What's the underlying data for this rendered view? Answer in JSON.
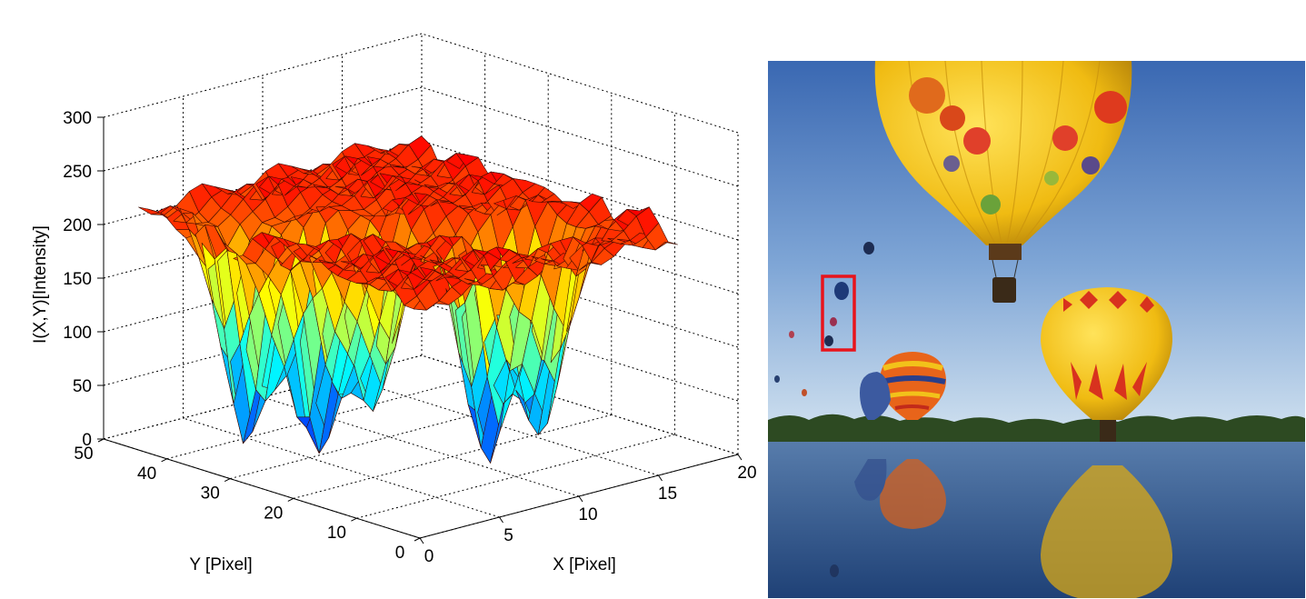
{
  "chart_data": {
    "type": "surface3d",
    "title": "",
    "xlabel": "X [Pixel]",
    "ylabel": "Y [Pixel]",
    "zlabel": "I(X,Y)[Intensity]",
    "xlim": [
      0,
      20
    ],
    "ylim": [
      0,
      50
    ],
    "zlim": [
      0,
      300
    ],
    "x_ticks": [
      0,
      5,
      10,
      15,
      20
    ],
    "y_ticks": [
      0,
      10,
      20,
      30,
      40,
      50
    ],
    "z_ticks": [
      0,
      50,
      100,
      150,
      200,
      250,
      300
    ],
    "grid": true,
    "colormap": "jet",
    "surface_baseline": 215,
    "surface_dips": [
      {
        "x": 3.5,
        "y": 36,
        "min": 15
      },
      {
        "x": 5.5,
        "y": 30,
        "min": 10
      },
      {
        "x": 7.5,
        "y": 26,
        "min": 48
      },
      {
        "x": 10.5,
        "y": 16,
        "min": 5
      },
      {
        "x": 13,
        "y": 14,
        "min": 8
      }
    ]
  },
  "image_panel": {
    "description_icon": "hot-air-balloons-photo",
    "highlight_color": "#e8141c",
    "colors": {
      "sky_top": "#3f6fb8",
      "sky_bottom": "#c7dcef",
      "water": "#2b4f86",
      "balloon_yellow": "#f2c21a",
      "balloon_red": "#d8321e"
    }
  }
}
